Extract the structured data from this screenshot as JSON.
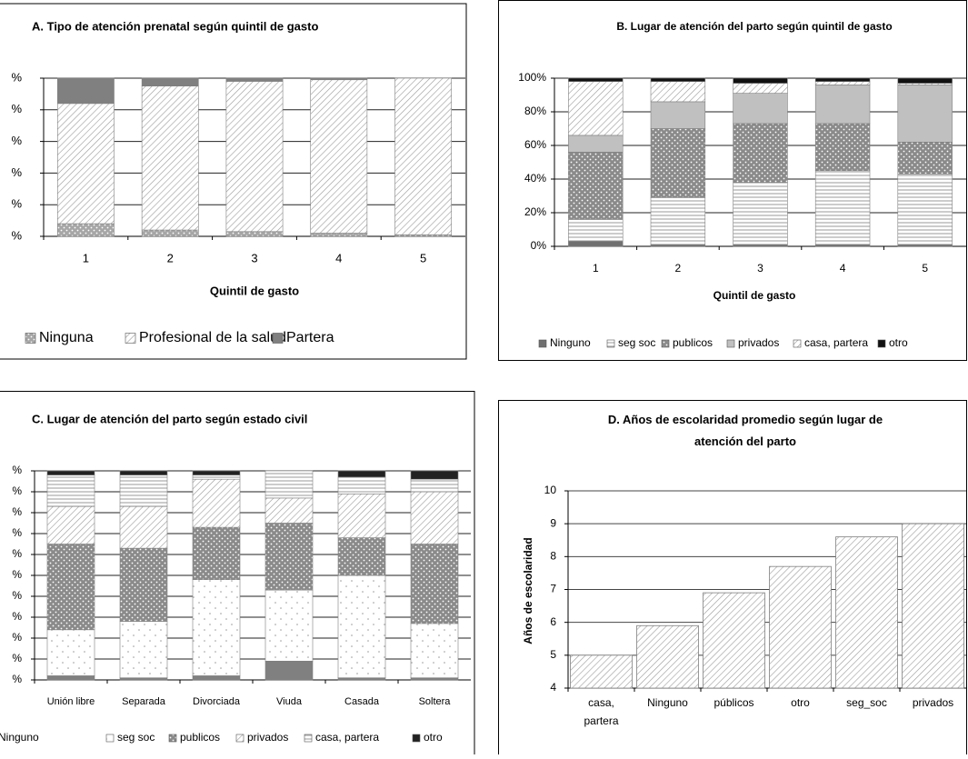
{
  "chart_data": [
    {
      "type": "stacked_bar",
      "title": "A. Tipo de atención prenatal según quintil de gasto",
      "x_label": "Quintil de gasto",
      "categories": [
        "1",
        "2",
        "3",
        "4",
        "5"
      ],
      "series": [
        {
          "name": "Ninguna",
          "color": "#a6a6a6",
          "pattern": "dots",
          "values": [
            8,
            4,
            3,
            2,
            1
          ]
        },
        {
          "name": "Profesional de la salud",
          "color": "#9a9a9a",
          "pattern": "hatch",
          "values": [
            76,
            91,
            95,
            97,
            99
          ]
        },
        {
          "name": "Partera",
          "color": "#808080",
          "pattern": "solid",
          "values": [
            16,
            5,
            2,
            1,
            0
          ]
        }
      ],
      "ylim": [
        0,
        100
      ],
      "yticks": [
        {
          "value": 0,
          "label": "%"
        },
        {
          "value": 20,
          "label": "%"
        },
        {
          "value": 40,
          "label": "%"
        },
        {
          "value": 60,
          "label": "%"
        },
        {
          "value": 80,
          "label": "%"
        },
        {
          "value": 100,
          "label": "%"
        }
      ],
      "grid": true
    },
    {
      "type": "stacked_bar",
      "title": "B. Lugar de atención del parto según quintil de gasto",
      "x_label": "Quintil de gasto",
      "categories": [
        "1",
        "2",
        "3",
        "4",
        "5"
      ],
      "series": [
        {
          "name": "Ninguno",
          "color": "#707070",
          "pattern": "solid",
          "values": [
            3,
            1,
            1,
            1,
            1
          ]
        },
        {
          "name": "seg soc",
          "color": "#9a9a9a",
          "pattern": "hlines",
          "values": [
            13,
            28,
            37,
            44,
            42
          ]
        },
        {
          "name": "publicos",
          "color": "#8a8a8a",
          "pattern": "dots",
          "values": [
            40,
            41,
            35,
            28,
            19
          ]
        },
        {
          "name": "privados",
          "color": "#c0c0c0",
          "pattern": "solid",
          "values": [
            10,
            16,
            18,
            23,
            34
          ]
        },
        {
          "name": "casa, partera",
          "color": "#9a9a9a",
          "pattern": "hatch",
          "values": [
            32,
            12,
            6,
            2,
            1
          ]
        },
        {
          "name": "otro",
          "color": "#111111",
          "pattern": "solid",
          "values": [
            2,
            2,
            3,
            2,
            3
          ]
        }
      ],
      "ylim": [
        0,
        100
      ],
      "yticks": [
        {
          "value": 0,
          "label": "0%"
        },
        {
          "value": 20,
          "label": "20%"
        },
        {
          "value": 40,
          "label": "40%"
        },
        {
          "value": 60,
          "label": "60%"
        },
        {
          "value": 80,
          "label": "80%"
        },
        {
          "value": 100,
          "label": "100%"
        }
      ],
      "grid": true
    },
    {
      "type": "stacked_bar",
      "title": "C. Lugar de atención del parto según estado civil",
      "categories": [
        "Unión libre",
        "Separada",
        "Divorciada",
        "Viuda",
        "Casada",
        "Soltera"
      ],
      "series": [
        {
          "name": "Ninguno",
          "color": "#808080",
          "pattern": "solid",
          "values": [
            2,
            1,
            2,
            9,
            1,
            1
          ]
        },
        {
          "name": "seg soc",
          "color": "#9a9a9a",
          "pattern": "sparse-dots",
          "values": [
            22,
            27,
            46,
            34,
            49,
            26
          ]
        },
        {
          "name": "publicos",
          "color": "#8a8a8a",
          "pattern": "dots",
          "values": [
            41,
            35,
            25,
            32,
            18,
            38
          ]
        },
        {
          "name": "privados",
          "color": "#9a9a9a",
          "pattern": "hatch",
          "values": [
            18,
            20,
            23,
            12,
            21,
            25
          ]
        },
        {
          "name": "casa, partera",
          "color": "#9a9a9a",
          "pattern": "hlines",
          "values": [
            15,
            15,
            2,
            13,
            8,
            6
          ]
        },
        {
          "name": "otro",
          "color": "#222222",
          "pattern": "solid",
          "values": [
            2,
            2,
            2,
            0,
            3,
            4
          ]
        }
      ],
      "ylim": [
        0,
        100
      ],
      "yticks": [
        {
          "value": 0,
          "label": "%"
        },
        {
          "value": 10,
          "label": "%"
        },
        {
          "value": 20,
          "label": "%"
        },
        {
          "value": 30,
          "label": "%"
        },
        {
          "value": 40,
          "label": "%"
        },
        {
          "value": 50,
          "label": "%"
        },
        {
          "value": 60,
          "label": "%"
        },
        {
          "value": 70,
          "label": "%"
        },
        {
          "value": 80,
          "label": "%"
        },
        {
          "value": 90,
          "label": "%"
        },
        {
          "value": 100,
          "label": "%"
        }
      ],
      "grid": true
    },
    {
      "type": "bar",
      "title": "D. Años de escolaridad promedio según lugar de atención del parto",
      "y_label": "Años de escolaridad",
      "categories": [
        "casa, partera",
        "Ninguno",
        "públicos",
        "otro",
        "seg_soc",
        "privados"
      ],
      "values": [
        5.0,
        5.9,
        6.9,
        7.7,
        8.6,
        9.0
      ],
      "color": "#9a9a9a",
      "pattern": "hatch",
      "ylim": [
        4,
        10
      ],
      "yticks": [
        4,
        5,
        6,
        7,
        8,
        9,
        10
      ],
      "grid": true
    }
  ]
}
